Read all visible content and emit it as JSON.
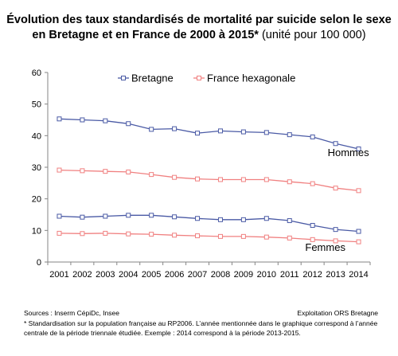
{
  "title": {
    "line1": "Évolution des taux standardisés de mortalité par suicide selon le sexe",
    "line2_bold": "en Bretagne et en France de 2000 à 2015*",
    "line2_normal": " (unité pour 100 000)"
  },
  "footer": {
    "sources": "Sources : Inserm CépiDc, Insee",
    "exploitation": "Exploitation ORS Bretagne",
    "note": "* Standardisation sur la population française au RP2006. L’année mentionnée dans le graphique correspond à l’année centrale de la période triennale étudiée. Exemple : 2014 correspond à la période 2013-2015."
  },
  "chart_data": {
    "type": "line",
    "x": [
      "2001",
      "2002",
      "2003",
      "2004",
      "2005",
      "2006",
      "2007",
      "2008",
      "2009",
      "2010",
      "2011",
      "2012",
      "2013",
      "2014"
    ],
    "ylim": [
      0,
      60
    ],
    "yticks": [
      0,
      10,
      20,
      30,
      40,
      50,
      60
    ],
    "grid": false,
    "legend_position": "top",
    "legend": [
      {
        "label": "Bretagne",
        "color": "#4a5aa5",
        "marker": "square"
      },
      {
        "label": "France hexagonale",
        "color": "#f08080",
        "marker": "square"
      }
    ],
    "series": [
      {
        "group": "Bretagne",
        "color": "#4a5aa5",
        "values": [
          45.3,
          45.0,
          44.7,
          43.8,
          42.0,
          42.2,
          40.8,
          41.5,
          41.2,
          41.0,
          40.3,
          39.6,
          37.5,
          35.8
        ]
      },
      {
        "group": "France hexagonale",
        "color": "#f08080",
        "values": [
          29.1,
          28.9,
          28.7,
          28.5,
          27.7,
          26.8,
          26.3,
          26.1,
          26.1,
          26.1,
          25.4,
          24.8,
          23.4,
          22.6
        ]
      },
      {
        "group": "Bretagne",
        "color": "#4a5aa5",
        "values": [
          14.5,
          14.2,
          14.5,
          14.8,
          14.8,
          14.3,
          13.8,
          13.4,
          13.4,
          13.8,
          13.1,
          11.6,
          10.3,
          9.7
        ]
      },
      {
        "group": "France hexagonale",
        "color": "#f08080",
        "values": [
          9.1,
          9.0,
          9.1,
          8.9,
          8.8,
          8.5,
          8.3,
          8.1,
          8.1,
          7.9,
          7.6,
          7.1,
          6.7,
          6.4
        ]
      }
    ],
    "annotations": [
      {
        "text": "Hommes",
        "x": "2013",
        "y": 33.5
      },
      {
        "text": "Femmes",
        "x": "2012",
        "y": 3.5
      }
    ]
  }
}
